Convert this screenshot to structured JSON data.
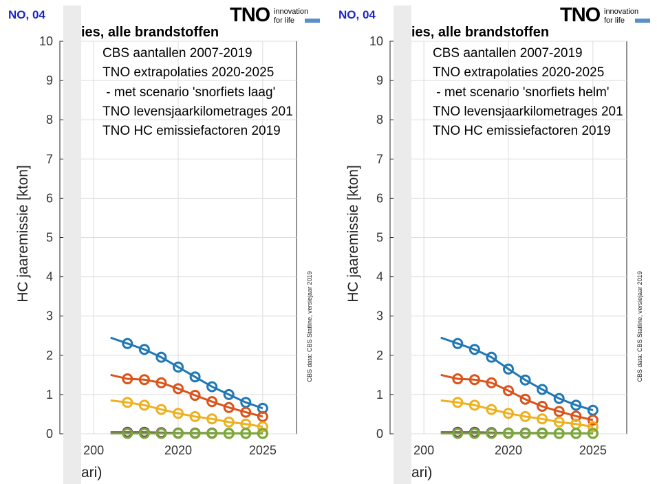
{
  "header_code": "NO, 04",
  "title_fragment": "ies, alle brandstoffen",
  "logo": {
    "mark": "TNO",
    "tagline_1": "innovation",
    "tagline_2": "for life",
    "accent_color": "#5b8fc9"
  },
  "y_axis_label": "HC jaaremissie [kton]",
  "x_axis_label": "ari)",
  "source_note": "CBS data: CBS Statline, versiejaar 2019",
  "annotations": {
    "line1": "CBS aantallen 2007-2019",
    "line2": "TNO extrapolaties 2020-2025",
    "line4": "TNO levensjaarkilometrages 201",
    "line5": "TNO HC emissiefactoren 2019"
  },
  "y_ticks": [
    "0",
    "1",
    "2",
    "3",
    "4",
    "5",
    "6",
    "7",
    "8",
    "9",
    "10"
  ],
  "x_ticks": [
    "200",
    "2020",
    "2025"
  ],
  "panels": [
    {
      "scenario_line": " - met scenario 'snorfiets laag'"
    },
    {
      "scenario_line": " - met scenario 'snorfiets helm'"
    }
  ],
  "series_colors": [
    "#1f77b4",
    "#d9541a",
    "#edb120",
    "#7e2f8e",
    "#77ac30"
  ],
  "chart_data": [
    {
      "type": "line",
      "x": [
        2016,
        2017,
        2018,
        2019,
        2020,
        2021,
        2022,
        2023,
        2024,
        2025
      ],
      "xlim": [
        2013,
        2027
      ],
      "ylim": [
        0,
        10
      ],
      "xlabel": "ari)",
      "ylabel": "HC jaaremissie [kton]",
      "series": [
        {
          "values": [
            2.45,
            2.3,
            2.15,
            1.95,
            1.7,
            1.45,
            1.2,
            1.0,
            0.8,
            0.65
          ]
        },
        {
          "values": [
            1.5,
            1.4,
            1.38,
            1.3,
            1.15,
            0.98,
            0.82,
            0.67,
            0.55,
            0.44
          ]
        },
        {
          "values": [
            0.85,
            0.8,
            0.73,
            0.62,
            0.52,
            0.44,
            0.38,
            0.3,
            0.25,
            0.18
          ]
        },
        {
          "values": [
            0.04,
            0.04,
            0.04,
            0.03,
            0.02,
            0.02,
            0.02,
            0.01,
            0.01,
            0.01
          ]
        },
        {
          "values": [
            0.01,
            0.01,
            0.01,
            0.01,
            0.01,
            0.01,
            0.01,
            0.01,
            0.01,
            0.01
          ]
        }
      ]
    },
    {
      "type": "line",
      "x": [
        2016,
        2017,
        2018,
        2019,
        2020,
        2021,
        2022,
        2023,
        2024,
        2025
      ],
      "xlim": [
        2013,
        2027
      ],
      "ylim": [
        0,
        10
      ],
      "xlabel": "ari)",
      "ylabel": "HC jaaremissie [kton]",
      "series": [
        {
          "values": [
            2.45,
            2.3,
            2.15,
            1.95,
            1.65,
            1.37,
            1.13,
            0.9,
            0.73,
            0.6
          ]
        },
        {
          "values": [
            1.5,
            1.4,
            1.38,
            1.3,
            1.1,
            0.88,
            0.7,
            0.57,
            0.45,
            0.35
          ]
        },
        {
          "values": [
            0.85,
            0.8,
            0.73,
            0.62,
            0.52,
            0.44,
            0.38,
            0.3,
            0.25,
            0.18
          ]
        },
        {
          "values": [
            0.04,
            0.04,
            0.04,
            0.03,
            0.02,
            0.02,
            0.02,
            0.01,
            0.01,
            0.01
          ]
        },
        {
          "values": [
            0.01,
            0.01,
            0.01,
            0.01,
            0.01,
            0.01,
            0.01,
            0.01,
            0.01,
            0.01
          ]
        }
      ]
    }
  ]
}
